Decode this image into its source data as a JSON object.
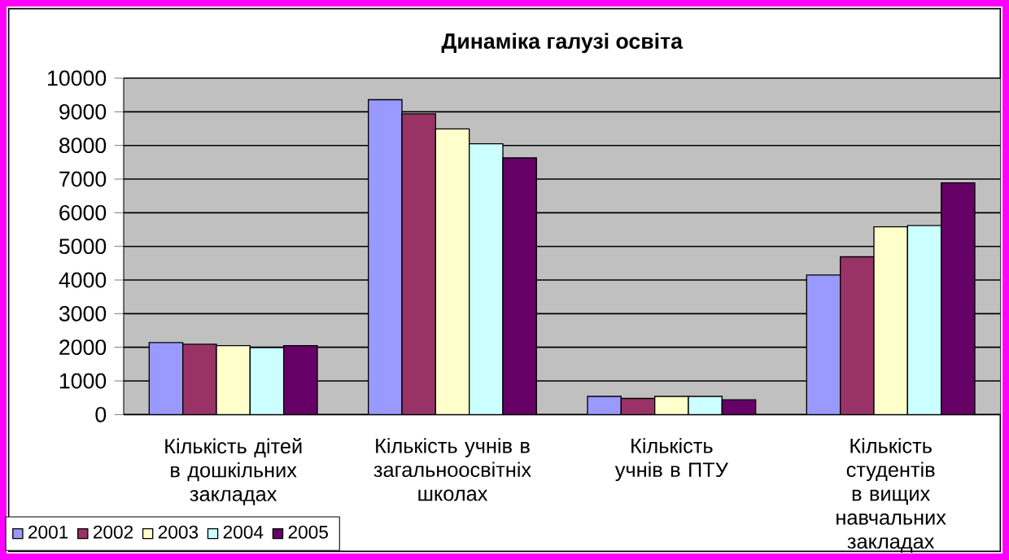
{
  "chart_data": {
    "type": "bar",
    "title": "Динаміка галузі освіта",
    "categories": [
      "Кількість дітей в дошкільних закладах",
      "Кількість учнів в загальноосвітніх школах",
      "Кількість учнів в ПТУ",
      "Кількість студентів в вищих навчальних закладах"
    ],
    "series": [
      {
        "name": "2001",
        "color": "#9999ff",
        "values": [
          2140,
          9360,
          540,
          4150
        ]
      },
      {
        "name": "2002",
        "color": "#993366",
        "values": [
          2090,
          8940,
          480,
          4690
        ]
      },
      {
        "name": "2003",
        "color": "#ffffcc",
        "values": [
          2050,
          8490,
          540,
          5580
        ]
      },
      {
        "name": "2004",
        "color": "#ccffff",
        "values": [
          1990,
          8050,
          540,
          5620
        ]
      },
      {
        "name": "2005",
        "color": "#660066",
        "values": [
          2050,
          7630,
          440,
          6890
        ]
      }
    ],
    "ylim": [
      0,
      10000
    ],
    "yticks": [
      0,
      1000,
      2000,
      3000,
      4000,
      5000,
      6000,
      7000,
      8000,
      9000,
      10000
    ],
    "grid": "y",
    "legend": "bottom left"
  }
}
